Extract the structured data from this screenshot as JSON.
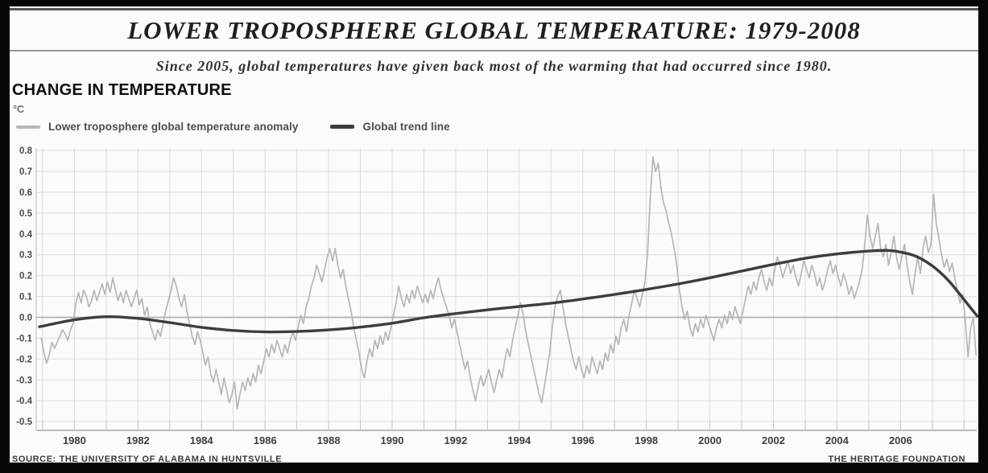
{
  "header": {
    "title": "LOWER TROPOSPHERE GLOBAL TEMPERATURE: 1979-2008",
    "subtitle": "Since 2005, global temperatures have given back most of the warming that had occurred since 1980.",
    "heading": "CHANGE IN TEMPERATURE",
    "unit": "°C"
  },
  "footer": {
    "left": "SOURCE: THE UNIVERSITY OF ALABAMA IN HUNTSVILLE",
    "right": "THE HERITAGE FOUNDATION"
  },
  "chart_data": {
    "type": "line",
    "title": "LOWER TROPOSPHERE GLOBAL TEMPERATURE: 1979-2008",
    "subtitle": "Since 2005, global temperatures have given back most of the warming that had occurred since 1980.",
    "ylabel": "°C",
    "xlabel": "",
    "grid": true,
    "legend_position": "top-left",
    "ylim": [
      -0.5,
      0.8
    ],
    "xlim": [
      1978.8,
      2008.45
    ],
    "yticks": [
      "0.8",
      "0.7",
      "0.6",
      "0.5",
      "0.4",
      "0.3",
      "0.2",
      "0.1",
      "0.0",
      "-0.1",
      "-0.2",
      "-0.3",
      "-0.4",
      "-0.5"
    ],
    "xticks": [
      1980,
      1982,
      1984,
      1986,
      1988,
      1990,
      1992,
      1994,
      1996,
      1998,
      2000,
      2002,
      2004,
      2006
    ],
    "year_gridlines": [
      1979,
      2008
    ],
    "legend": [
      {
        "label": "Lower troposphere global temperature anomaly",
        "color": "#b6b6b6"
      },
      {
        "label": "Global trend line",
        "color": "#3d3d3d"
      }
    ],
    "series": [
      {
        "name": "Lower troposphere global temperature anomaly",
        "start_year": 1978.958,
        "step_years": 0.0833333,
        "values": [
          -0.1,
          -0.17,
          -0.22,
          -0.18,
          -0.12,
          -0.15,
          -0.12,
          -0.09,
          -0.06,
          -0.08,
          -0.11,
          -0.06,
          -0.03,
          0.06,
          0.12,
          0.07,
          0.13,
          0.1,
          0.05,
          0.08,
          0.13,
          0.08,
          0.12,
          0.16,
          0.11,
          0.17,
          0.12,
          0.19,
          0.13,
          0.08,
          0.12,
          0.07,
          0.13,
          0.09,
          0.05,
          0.09,
          0.13,
          0.06,
          0.09,
          0.01,
          0.05,
          -0.03,
          -0.07,
          -0.11,
          -0.06,
          -0.09,
          -0.03,
          0.03,
          0.08,
          0.13,
          0.19,
          0.15,
          0.09,
          0.05,
          0.11,
          0.03,
          -0.03,
          -0.09,
          -0.13,
          -0.07,
          -0.11,
          -0.17,
          -0.23,
          -0.19,
          -0.27,
          -0.31,
          -0.25,
          -0.31,
          -0.37,
          -0.29,
          -0.35,
          -0.41,
          -0.37,
          -0.31,
          -0.44,
          -0.37,
          -0.31,
          -0.35,
          -0.29,
          -0.33,
          -0.27,
          -0.31,
          -0.23,
          -0.27,
          -0.21,
          -0.15,
          -0.19,
          -0.13,
          -0.17,
          -0.11,
          -0.15,
          -0.19,
          -0.13,
          -0.17,
          -0.11,
          -0.07,
          -0.11,
          -0.05,
          0.01,
          -0.03,
          0.05,
          0.09,
          0.15,
          0.19,
          0.25,
          0.21,
          0.17,
          0.23,
          0.29,
          0.33,
          0.27,
          0.33,
          0.25,
          0.19,
          0.23,
          0.15,
          0.09,
          0.03,
          -0.05,
          -0.11,
          -0.17,
          -0.25,
          -0.29,
          -0.21,
          -0.15,
          -0.19,
          -0.11,
          -0.15,
          -0.09,
          -0.13,
          -0.07,
          -0.11,
          -0.05,
          0.01,
          0.07,
          0.15,
          0.09,
          0.05,
          0.11,
          0.07,
          0.13,
          0.09,
          0.15,
          0.11,
          0.07,
          0.11,
          0.07,
          0.13,
          0.09,
          0.15,
          0.19,
          0.13,
          0.09,
          0.05,
          0.01,
          -0.05,
          -0.01,
          -0.07,
          -0.13,
          -0.19,
          -0.25,
          -0.21,
          -0.29,
          -0.35,
          -0.4,
          -0.33,
          -0.28,
          -0.33,
          -0.29,
          -0.25,
          -0.31,
          -0.36,
          -0.3,
          -0.25,
          -0.29,
          -0.21,
          -0.15,
          -0.19,
          -0.11,
          -0.05,
          0.01,
          0.07,
          0.01,
          -0.07,
          -0.13,
          -0.19,
          -0.25,
          -0.31,
          -0.37,
          -0.41,
          -0.33,
          -0.25,
          -0.17,
          -0.05,
          0.05,
          0.1,
          0.13,
          0.05,
          -0.03,
          -0.09,
          -0.15,
          -0.21,
          -0.25,
          -0.19,
          -0.25,
          -0.29,
          -0.23,
          -0.27,
          -0.19,
          -0.23,
          -0.27,
          -0.21,
          -0.25,
          -0.17,
          -0.21,
          -0.13,
          -0.17,
          -0.09,
          -0.13,
          -0.05,
          -0.01,
          -0.07,
          0.01,
          0.07,
          0.13,
          0.09,
          0.05,
          0.11,
          0.17,
          0.31,
          0.58,
          0.77,
          0.7,
          0.74,
          0.62,
          0.55,
          0.51,
          0.45,
          0.4,
          0.33,
          0.25,
          0.13,
          0.05,
          -0.01,
          0.03,
          -0.05,
          -0.09,
          -0.03,
          -0.07,
          -0.01,
          -0.05,
          0.01,
          -0.03,
          -0.07,
          -0.11,
          -0.05,
          -0.01,
          -0.05,
          0.01,
          -0.03,
          0.03,
          -0.01,
          0.05,
          0.01,
          -0.03,
          0.03,
          0.09,
          0.15,
          0.11,
          0.17,
          0.13,
          0.19,
          0.23,
          0.17,
          0.13,
          0.19,
          0.15,
          0.23,
          0.29,
          0.25,
          0.19,
          0.23,
          0.27,
          0.21,
          0.25,
          0.19,
          0.15,
          0.21,
          0.27,
          0.23,
          0.19,
          0.25,
          0.21,
          0.15,
          0.19,
          0.13,
          0.17,
          0.23,
          0.27,
          0.21,
          0.25,
          0.19,
          0.15,
          0.21,
          0.17,
          0.11,
          0.15,
          0.09,
          0.13,
          0.17,
          0.23,
          0.35,
          0.49,
          0.39,
          0.33,
          0.39,
          0.45,
          0.33,
          0.29,
          0.35,
          0.25,
          0.31,
          0.39,
          0.29,
          0.23,
          0.29,
          0.35,
          0.25,
          0.17,
          0.11,
          0.21,
          0.29,
          0.21,
          0.33,
          0.39,
          0.31,
          0.35,
          0.59,
          0.45,
          0.38,
          0.3,
          0.24,
          0.28,
          0.22,
          0.26,
          0.19,
          0.13,
          0.07,
          0.11,
          -0.02,
          -0.19,
          -0.05,
          0.0,
          -0.18
        ]
      },
      {
        "name": "Global trend line",
        "x": [
          1978.9,
          1980,
          1981,
          1982,
          1983,
          1984,
          1985,
          1986,
          1987,
          1988,
          1989,
          1990,
          1991,
          1992,
          1993,
          1994,
          1995,
          1996,
          1997,
          1998,
          1999,
          2000,
          2001,
          2002,
          2003,
          2004,
          2005,
          2005.6,
          2006,
          2006.5,
          2007,
          2007.5,
          2008,
          2008.42
        ],
        "values": [
          -0.045,
          -0.012,
          0.003,
          -0.005,
          -0.025,
          -0.048,
          -0.063,
          -0.07,
          -0.068,
          -0.06,
          -0.047,
          -0.028,
          -0.002,
          0.018,
          0.036,
          0.052,
          0.068,
          0.088,
          0.11,
          0.134,
          0.16,
          0.19,
          0.222,
          0.254,
          0.283,
          0.304,
          0.318,
          0.321,
          0.313,
          0.292,
          0.247,
          0.178,
          0.085,
          0.005
        ]
      }
    ]
  }
}
